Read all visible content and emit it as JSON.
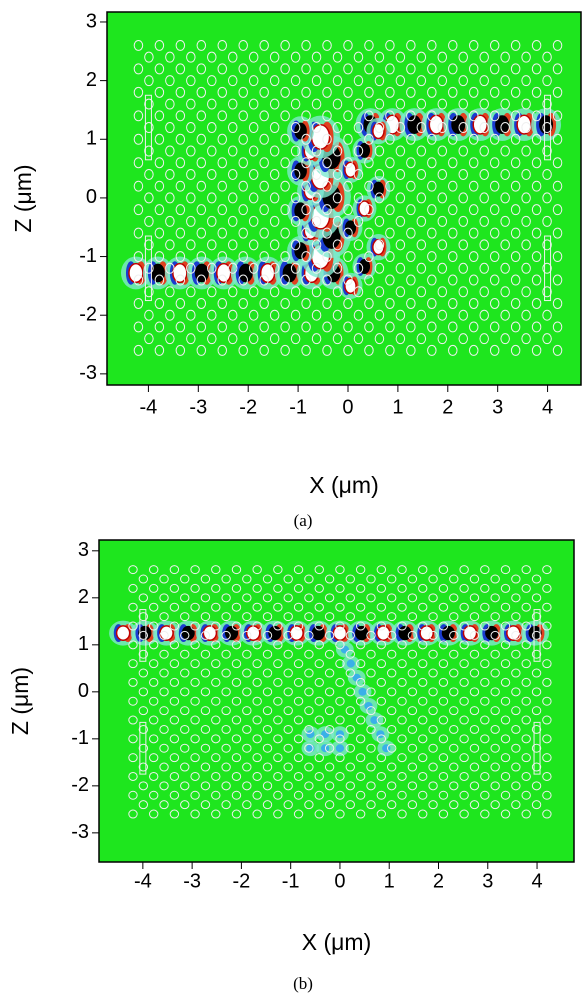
{
  "chart_data": [
    {
      "type": "heatmap",
      "x_label": "X (μm)",
      "y_label": "Z (μm)",
      "caption": "(a)",
      "xlim": [
        -4.83,
        4.67
      ],
      "ylim": [
        -3.19,
        3.17
      ],
      "xticks": [
        -4,
        -3,
        -2,
        -1,
        0,
        1,
        2,
        3,
        4
      ],
      "yticks": [
        -3,
        -2,
        -1,
        0,
        1,
        2,
        3
      ]
    },
    {
      "type": "heatmap",
      "x_label": "X (μm)",
      "y_label": "Z (μm)",
      "caption": "(b)",
      "xlim": [
        -4.89,
        4.75
      ],
      "ylim": [
        -3.62,
        3.23
      ],
      "xticks": [
        -4,
        -3,
        -2,
        -1,
        0,
        1,
        2,
        3,
        4
      ],
      "yticks": [
        -3,
        -2,
        -1,
        0,
        1,
        2,
        3
      ]
    }
  ]
}
